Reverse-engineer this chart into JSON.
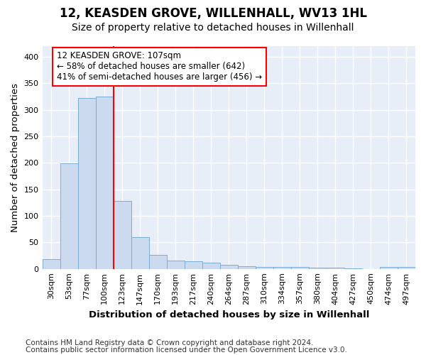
{
  "title": "12, KEASDEN GROVE, WILLENHALL, WV13 1HL",
  "subtitle": "Size of property relative to detached houses in Willenhall",
  "xlabel": "Distribution of detached houses by size in Willenhall",
  "ylabel": "Number of detached properties",
  "bin_labels": [
    "30sqm",
    "53sqm",
    "77sqm",
    "100sqm",
    "123sqm",
    "147sqm",
    "170sqm",
    "193sqm",
    "217sqm",
    "240sqm",
    "264sqm",
    "287sqm",
    "310sqm",
    "334sqm",
    "357sqm",
    "380sqm",
    "404sqm",
    "427sqm",
    "450sqm",
    "474sqm",
    "497sqm"
  ],
  "bar_values": [
    18,
    199,
    322,
    325,
    128,
    60,
    27,
    15,
    14,
    11,
    7,
    5,
    3,
    4,
    3,
    2,
    2,
    1,
    0,
    3,
    4
  ],
  "bar_color": "#ccdaf0",
  "bar_edge_color": "#7aadd4",
  "red_line_x": 3.5,
  "annotation_line1": "12 KEASDEN GROVE: 107sqm",
  "annotation_line2": "← 58% of detached houses are smaller (642)",
  "annotation_line3": "41% of semi-detached houses are larger (456) →",
  "ylim": [
    0,
    420
  ],
  "yticks": [
    0,
    50,
    100,
    150,
    200,
    250,
    300,
    350,
    400
  ],
  "footnote1": "Contains HM Land Registry data © Crown copyright and database right 2024.",
  "footnote2": "Contains public sector information licensed under the Open Government Licence v3.0.",
  "bg_color": "#ffffff",
  "plot_bg_color": "#e8eef8",
  "grid_color": "#ffffff",
  "title_fontsize": 12,
  "subtitle_fontsize": 10,
  "axis_label_fontsize": 9.5,
  "tick_fontsize": 8,
  "annotation_fontsize": 8.5,
  "footnote_fontsize": 7.5
}
